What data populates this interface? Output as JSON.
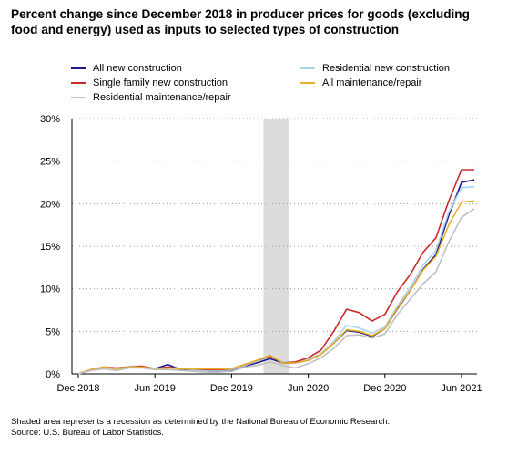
{
  "chart_data": {
    "type": "line",
    "title": "Percent change since December 2018 in producer prices for goods (excluding food and energy) used as inputs to selected types of construction",
    "xlabel": "",
    "ylabel": "",
    "x_tick_labels": [
      "Dec 2018",
      "Jun 2019",
      "Dec 2019",
      "Jun 2020",
      "Dec 2020",
      "Jun 2021"
    ],
    "x_tick_index": [
      0,
      6,
      12,
      18,
      24,
      30
    ],
    "y_tick_labels": [
      "0%",
      "5%",
      "10%",
      "15%",
      "20%",
      "25%",
      "30%"
    ],
    "y_tick_values": [
      0,
      5,
      10,
      15,
      20,
      25,
      30
    ],
    "ylim": [
      0,
      30
    ],
    "months": [
      "Dec 2018",
      "Jan 2019",
      "Feb 2019",
      "Mar 2019",
      "Apr 2019",
      "May 2019",
      "Jun 2019",
      "Jul 2019",
      "Aug 2019",
      "Sep 2019",
      "Oct 2019",
      "Nov 2019",
      "Dec 2019",
      "Jan 2020",
      "Feb 2020",
      "Mar 2020",
      "Apr 2020",
      "May 2020",
      "Jun 2020",
      "Jul 2020",
      "Aug 2020",
      "Sep 2020",
      "Oct 2020",
      "Nov 2020",
      "Dec 2020",
      "Jan 2021",
      "Feb 2021",
      "Mar 2021",
      "Apr 2021",
      "May 2021",
      "Jun 2021",
      "Jul 2021"
    ],
    "recession": {
      "start_index": 14.5,
      "end_index": 16.5,
      "label": "Shaded area represents a recession as determined by the National Bureau of Economic Research."
    },
    "grid": "horizontal-dotted",
    "legend_position": "top",
    "series": [
      {
        "name": "All new construction",
        "color": "#1a1a8c",
        "values": [
          0.0,
          0.5,
          0.8,
          0.6,
          0.8,
          0.8,
          0.6,
          1.1,
          0.5,
          0.5,
          0.4,
          0.3,
          0.4,
          0.9,
          1.3,
          1.8,
          1.3,
          1.3,
          1.6,
          2.3,
          3.6,
          5.1,
          4.9,
          4.4,
          5.3,
          7.7,
          9.8,
          12.3,
          14.0,
          18.6,
          22.5,
          22.8
        ]
      },
      {
        "name": "Residential new construction",
        "color": "#a8d4ee",
        "values": [
          0.0,
          0.5,
          0.8,
          0.6,
          0.9,
          0.9,
          0.6,
          0.8,
          0.6,
          0.5,
          0.4,
          0.4,
          0.5,
          1.0,
          1.5,
          2.0,
          1.4,
          1.4,
          1.7,
          2.4,
          3.8,
          5.7,
          5.4,
          4.8,
          5.5,
          8.0,
          10.2,
          12.8,
          14.5,
          19.0,
          21.9,
          22.0
        ]
      },
      {
        "name": "Single family new construction",
        "color": "#cc2a2a",
        "values": [
          0.0,
          0.5,
          0.8,
          0.7,
          0.8,
          0.9,
          0.6,
          0.8,
          0.6,
          0.6,
          0.5,
          0.5,
          0.6,
          1.1,
          1.6,
          2.1,
          1.3,
          1.4,
          1.9,
          2.8,
          5.0,
          7.6,
          7.2,
          6.2,
          7.0,
          9.7,
          11.7,
          14.3,
          16.0,
          20.3,
          24.0,
          24.0
        ]
      },
      {
        "name": "All maintenance/repair",
        "color": "#e8b028",
        "values": [
          0.0,
          0.5,
          0.8,
          0.6,
          0.8,
          0.8,
          0.6,
          0.7,
          0.6,
          0.6,
          0.6,
          0.6,
          0.6,
          1.1,
          1.6,
          2.2,
          1.3,
          1.3,
          1.6,
          2.3,
          3.6,
          5.2,
          5.0,
          4.5,
          5.3,
          7.8,
          9.8,
          12.2,
          13.8,
          17.5,
          20.2,
          20.3
        ]
      },
      {
        "name": "Residential maintenance/repair",
        "color": "#c0c0c0",
        "values": [
          0.0,
          0.4,
          0.6,
          0.4,
          0.7,
          0.7,
          0.5,
          0.5,
          0.4,
          0.3,
          0.2,
          0.2,
          0.3,
          0.8,
          1.0,
          1.4,
          1.0,
          0.7,
          1.2,
          1.9,
          3.0,
          4.5,
          4.6,
          4.2,
          4.7,
          7.0,
          8.8,
          10.6,
          12.0,
          15.5,
          18.4,
          19.4
        ]
      }
    ]
  },
  "footnote": {
    "line1": "Shaded area represents a recession as determined by the National Bureau of Economic Research.",
    "line2": "Source: U.S. Bureau of Labor Statistics."
  }
}
